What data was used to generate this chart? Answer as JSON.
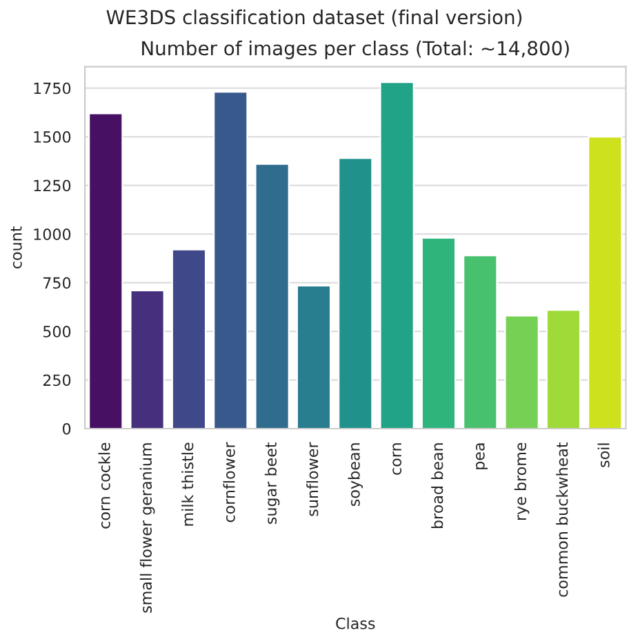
{
  "chart_data": {
    "type": "bar",
    "title": "WE3DS classification dataset (final version)",
    "subtitle": "Number of images per class (Total: ~14,800)",
    "xlabel": "Class",
    "ylabel": "count",
    "categories": [
      "corn cockle",
      "small flower geranium",
      "milk thistle",
      "cornflower",
      "sugar beet",
      "sunflower",
      "soybean",
      "corn",
      "broad bean",
      "pea",
      "rye brome",
      "common buckwheat",
      "soil"
    ],
    "values": [
      1620,
      710,
      920,
      1730,
      1360,
      735,
      1390,
      1780,
      980,
      890,
      580,
      610,
      1500
    ],
    "colors": [
      "#471063",
      "#46307e",
      "#3f4889",
      "#37598c",
      "#2f6c8e",
      "#287d8e",
      "#21918c",
      "#20a386",
      "#2fb47c",
      "#48c16e",
      "#75d054",
      "#a0da39",
      "#cde11d"
    ],
    "ylim": [
      0,
      1860
    ],
    "yticks": [
      0,
      250,
      500,
      750,
      1000,
      1250,
      1500,
      1750
    ],
    "grid": "y"
  }
}
